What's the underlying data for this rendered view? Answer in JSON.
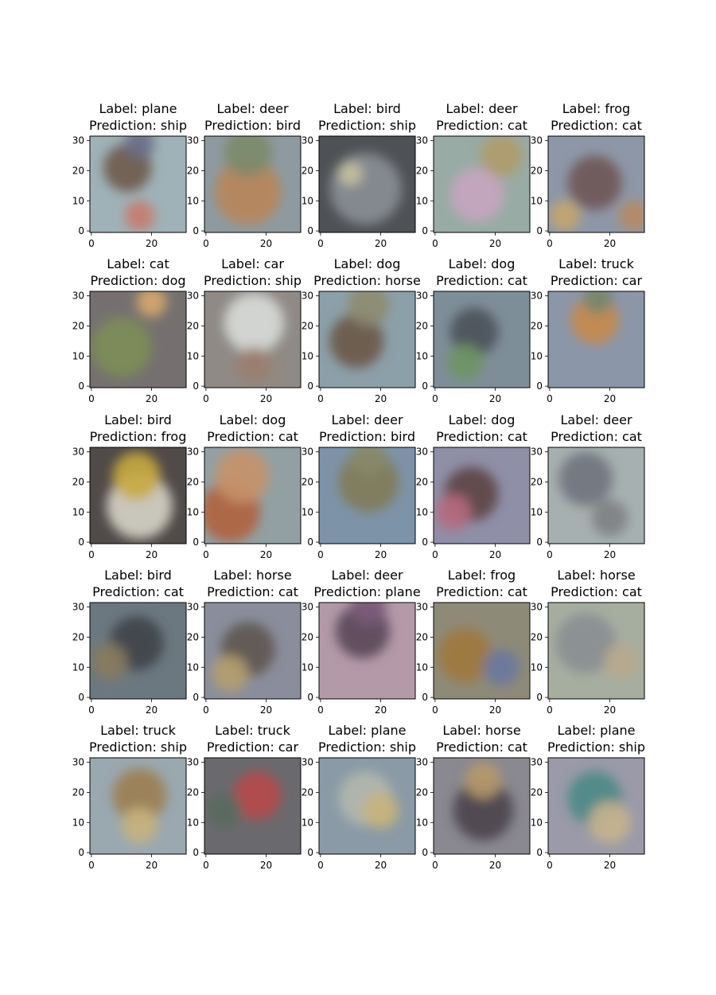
{
  "chart_data": {
    "type": "image_grid",
    "title_prefixes": {
      "label": "Label: ",
      "prediction": "Prediction: "
    },
    "rows": 5,
    "cols": 5,
    "axes": {
      "x_ticks": [
        0,
        20
      ],
      "y_ticks": [
        0,
        10,
        20,
        30
      ],
      "xlim": [
        -0.5,
        31.5
      ],
      "ylim": [
        31.5,
        -0.5
      ]
    },
    "panels": [
      {
        "label": "plane",
        "prediction": "ship",
        "bg": "#9fb2b7",
        "blobs": [
          {
            "x": 12,
            "y": 21,
            "r": 8,
            "color": "#6e5a4a"
          },
          {
            "x": 16,
            "y": 5,
            "r": 5,
            "color": "#c87a6e"
          },
          {
            "x": 16,
            "y": 29,
            "r": 5,
            "color": "#6a6d88"
          }
        ]
      },
      {
        "label": "deer",
        "prediction": "bird",
        "bg": "#8e9aa0",
        "blobs": [
          {
            "x": 14,
            "y": 13,
            "r": 11,
            "color": "#b9855a"
          },
          {
            "x": 14,
            "y": 26,
            "r": 8,
            "color": "#7c8a6a"
          }
        ]
      },
      {
        "label": "bird",
        "prediction": "ship",
        "bg": "#4e5156",
        "blobs": [
          {
            "x": 15,
            "y": 14,
            "r": 12,
            "color": "#8a8f95"
          },
          {
            "x": 10,
            "y": 19,
            "r": 4,
            "color": "#c8c2a2"
          }
        ]
      },
      {
        "label": "deer",
        "prediction": "cat",
        "bg": "#98aba4",
        "blobs": [
          {
            "x": 14,
            "y": 12,
            "r": 9,
            "color": "#c7a5c0"
          },
          {
            "x": 22,
            "y": 25,
            "r": 7,
            "color": "#b09b6a"
          }
        ]
      },
      {
        "label": "frog",
        "prediction": "cat",
        "bg": "#8e97a8",
        "blobs": [
          {
            "x": 15,
            "y": 16,
            "r": 9,
            "color": "#6f5554"
          },
          {
            "x": 5,
            "y": 5,
            "r": 5,
            "color": "#c8a66a"
          },
          {
            "x": 28,
            "y": 5,
            "r": 5,
            "color": "#b88a62"
          }
        ]
      },
      {
        "label": "cat",
        "prediction": "dog",
        "bg": "#75706f",
        "blobs": [
          {
            "x": 10,
            "y": 13,
            "r": 10,
            "color": "#7d8e57"
          },
          {
            "x": 20,
            "y": 28,
            "r": 5,
            "color": "#d8a86e"
          }
        ]
      },
      {
        "label": "car",
        "prediction": "ship",
        "bg": "#8f8a86",
        "blobs": [
          {
            "x": 16,
            "y": 21,
            "r": 10,
            "color": "#d8dbd8"
          },
          {
            "x": 16,
            "y": 7,
            "r": 6,
            "color": "#9b7e6e"
          }
        ]
      },
      {
        "label": "dog",
        "prediction": "horse",
        "bg": "#8ca0aa",
        "blobs": [
          {
            "x": 12,
            "y": 15,
            "r": 9,
            "color": "#6b5646"
          },
          {
            "x": 16,
            "y": 27,
            "r": 7,
            "color": "#8e8b70"
          }
        ]
      },
      {
        "label": "dog",
        "prediction": "cat",
        "bg": "#7e8e99",
        "blobs": [
          {
            "x": 13,
            "y": 18,
            "r": 8,
            "color": "#4a525a"
          },
          {
            "x": 10,
            "y": 8,
            "r": 6,
            "color": "#6f9464"
          }
        ]
      },
      {
        "label": "truck",
        "prediction": "car",
        "bg": "#8b96a9",
        "blobs": [
          {
            "x": 15,
            "y": 22,
            "r": 8,
            "color": "#c88a4a"
          },
          {
            "x": 16,
            "y": 29,
            "r": 5,
            "color": "#75866e"
          }
        ]
      },
      {
        "label": "bird",
        "prediction": "frog",
        "bg": "#504a48",
        "blobs": [
          {
            "x": 16,
            "y": 12,
            "r": 11,
            "color": "#d6d4c8"
          },
          {
            "x": 15,
            "y": 22,
            "r": 8,
            "color": "#c8aa3e"
          }
        ]
      },
      {
        "label": "dog",
        "prediction": "cat",
        "bg": "#92a0a4",
        "blobs": [
          {
            "x": 8,
            "y": 10,
            "r": 10,
            "color": "#b0623e"
          },
          {
            "x": 12,
            "y": 22,
            "r": 9,
            "color": "#c8926a"
          }
        ]
      },
      {
        "label": "deer",
        "prediction": "bird",
        "bg": "#7d93a8",
        "blobs": [
          {
            "x": 16,
            "y": 20,
            "r": 10,
            "color": "#827a58"
          },
          {
            "x": 16,
            "y": 28,
            "r": 6,
            "color": "#8a8a68"
          }
        ]
      },
      {
        "label": "dog",
        "prediction": "cat",
        "bg": "#8f8fa8",
        "blobs": [
          {
            "x": 12,
            "y": 16,
            "r": 9,
            "color": "#5c4444"
          },
          {
            "x": 6,
            "y": 10,
            "r": 6,
            "color": "#b66a7e"
          }
        ]
      },
      {
        "label": "deer",
        "prediction": "cat",
        "bg": "#a7b0b0",
        "blobs": [
          {
            "x": 12,
            "y": 21,
            "r": 9,
            "color": "#70737d"
          },
          {
            "x": 20,
            "y": 8,
            "r": 6,
            "color": "#7e8183"
          }
        ]
      },
      {
        "label": "bird",
        "prediction": "cat",
        "bg": "#6c7880",
        "blobs": [
          {
            "x": 15,
            "y": 18,
            "r": 9,
            "color": "#3e4448"
          },
          {
            "x": 6,
            "y": 12,
            "r": 6,
            "color": "#8a7a5e"
          }
        ]
      },
      {
        "label": "horse",
        "prediction": "cat",
        "bg": "#8a8e9c",
        "blobs": [
          {
            "x": 14,
            "y": 16,
            "r": 9,
            "color": "#5e5450"
          },
          {
            "x": 8,
            "y": 8,
            "r": 6,
            "color": "#b6a06e"
          }
        ]
      },
      {
        "label": "deer",
        "prediction": "plane",
        "bg": "#b49aa8",
        "blobs": [
          {
            "x": 14,
            "y": 22,
            "r": 9,
            "color": "#5a4656"
          },
          {
            "x": 16,
            "y": 30,
            "r": 6,
            "color": "#7a5a7a"
          }
        ]
      },
      {
        "label": "frog",
        "prediction": "cat",
        "bg": "#8e8a78",
        "blobs": [
          {
            "x": 10,
            "y": 14,
            "r": 9,
            "color": "#a0783e"
          },
          {
            "x": 22,
            "y": 10,
            "r": 6,
            "color": "#6a78a0"
          }
        ]
      },
      {
        "label": "horse",
        "prediction": "cat",
        "bg": "#a6aea0",
        "blobs": [
          {
            "x": 12,
            "y": 18,
            "r": 10,
            "color": "#8a8e92"
          },
          {
            "x": 24,
            "y": 12,
            "r": 6,
            "color": "#b8a88e"
          }
        ]
      },
      {
        "label": "truck",
        "prediction": "ship",
        "bg": "#9aa8b0",
        "blobs": [
          {
            "x": 16,
            "y": 19,
            "r": 9,
            "color": "#9c7e52"
          },
          {
            "x": 16,
            "y": 9,
            "r": 6,
            "color": "#c8b27e"
          }
        ]
      },
      {
        "label": "truck",
        "prediction": "car",
        "bg": "#6a6a6e",
        "blobs": [
          {
            "x": 17,
            "y": 19,
            "r": 8,
            "color": "#b8484a"
          },
          {
            "x": 6,
            "y": 14,
            "r": 6,
            "color": "#5a6a5e"
          }
        ]
      },
      {
        "label": "plane",
        "prediction": "ship",
        "bg": "#8a9aa6",
        "blobs": [
          {
            "x": 15,
            "y": 18,
            "r": 9,
            "color": "#b4b8ae"
          },
          {
            "x": 20,
            "y": 14,
            "r": 6,
            "color": "#c8b47a"
          }
        ]
      },
      {
        "label": "horse",
        "prediction": "cat",
        "bg": "#8a8890",
        "blobs": [
          {
            "x": 16,
            "y": 14,
            "r": 10,
            "color": "#4a444c"
          },
          {
            "x": 16,
            "y": 24,
            "r": 6,
            "color": "#b89a6a"
          }
        ]
      },
      {
        "label": "plane",
        "prediction": "ship",
        "bg": "#9a9aa8",
        "blobs": [
          {
            "x": 15,
            "y": 18,
            "r": 9,
            "color": "#4a8a86"
          },
          {
            "x": 20,
            "y": 10,
            "r": 7,
            "color": "#c8b48e"
          }
        ]
      }
    ]
  }
}
